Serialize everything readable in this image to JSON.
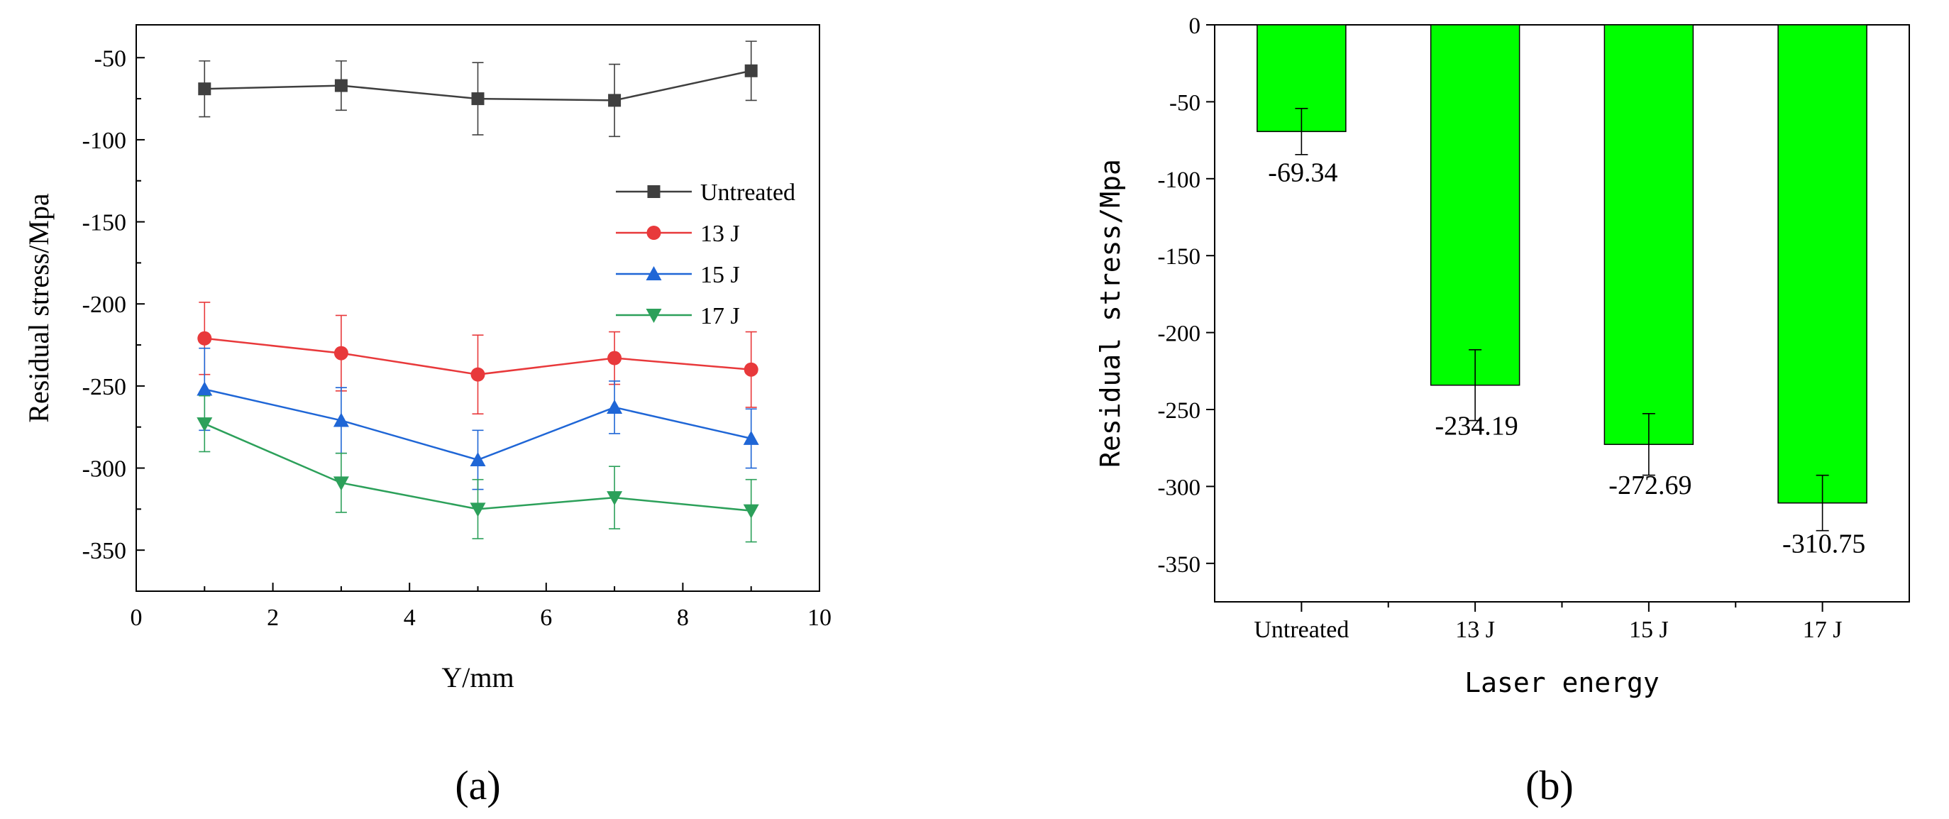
{
  "chart_data": [
    {
      "type": "line",
      "panel_label": "(a)",
      "xlabel": "Y/mm",
      "ylabel": "Residual stress/Mpa",
      "xlim": [
        0,
        10
      ],
      "ylim": [
        -375,
        -30
      ],
      "xticks": [
        0,
        2,
        4,
        6,
        8,
        10
      ],
      "yticks": [
        -50,
        -100,
        -150,
        -200,
        -250,
        -300,
        -350
      ],
      "x": [
        1,
        3,
        5,
        7,
        9
      ],
      "legend_position": "right",
      "series": [
        {
          "name": "Untreated",
          "color": "#3f3f3f",
          "marker": "square",
          "values": [
            -69,
            -67,
            -75,
            -76,
            -58
          ],
          "errors": [
            17,
            15,
            22,
            22,
            18
          ]
        },
        {
          "name": "13 J",
          "color": "#e8393b",
          "marker": "circle",
          "values": [
            -221,
            -230,
            -243,
            -233,
            -240
          ],
          "errors": [
            22,
            23,
            24,
            16,
            23
          ]
        },
        {
          "name": "15 J",
          "color": "#1f66d6",
          "marker": "triangle-up",
          "values": [
            -252,
            -271,
            -295,
            -263,
            -282
          ],
          "errors": [
            25,
            20,
            18,
            16,
            18
          ]
        },
        {
          "name": "17 J",
          "color": "#2ca05a",
          "marker": "triangle-down",
          "values": [
            -273,
            -309,
            -325,
            -318,
            -326
          ],
          "errors": [
            17,
            18,
            18,
            19,
            19
          ]
        }
      ]
    },
    {
      "type": "bar",
      "panel_label": "(b)",
      "xlabel": "Laser energy",
      "ylabel": "Residual stress/Mpa",
      "ylim": [
        -375,
        0
      ],
      "yticks": [
        0,
        -50,
        -100,
        -150,
        -200,
        -250,
        -300,
        -350
      ],
      "bar_color": "#00ff00",
      "categories": [
        "Untreated",
        "13 J",
        "15 J",
        "17 J"
      ],
      "values": [
        -69.34,
        -234.19,
        -272.69,
        -310.75
      ],
      "errors": [
        15,
        23,
        20,
        18
      ],
      "data_labels": [
        "-69.34",
        "-234.19",
        "-272.69",
        "-310.75"
      ]
    }
  ]
}
